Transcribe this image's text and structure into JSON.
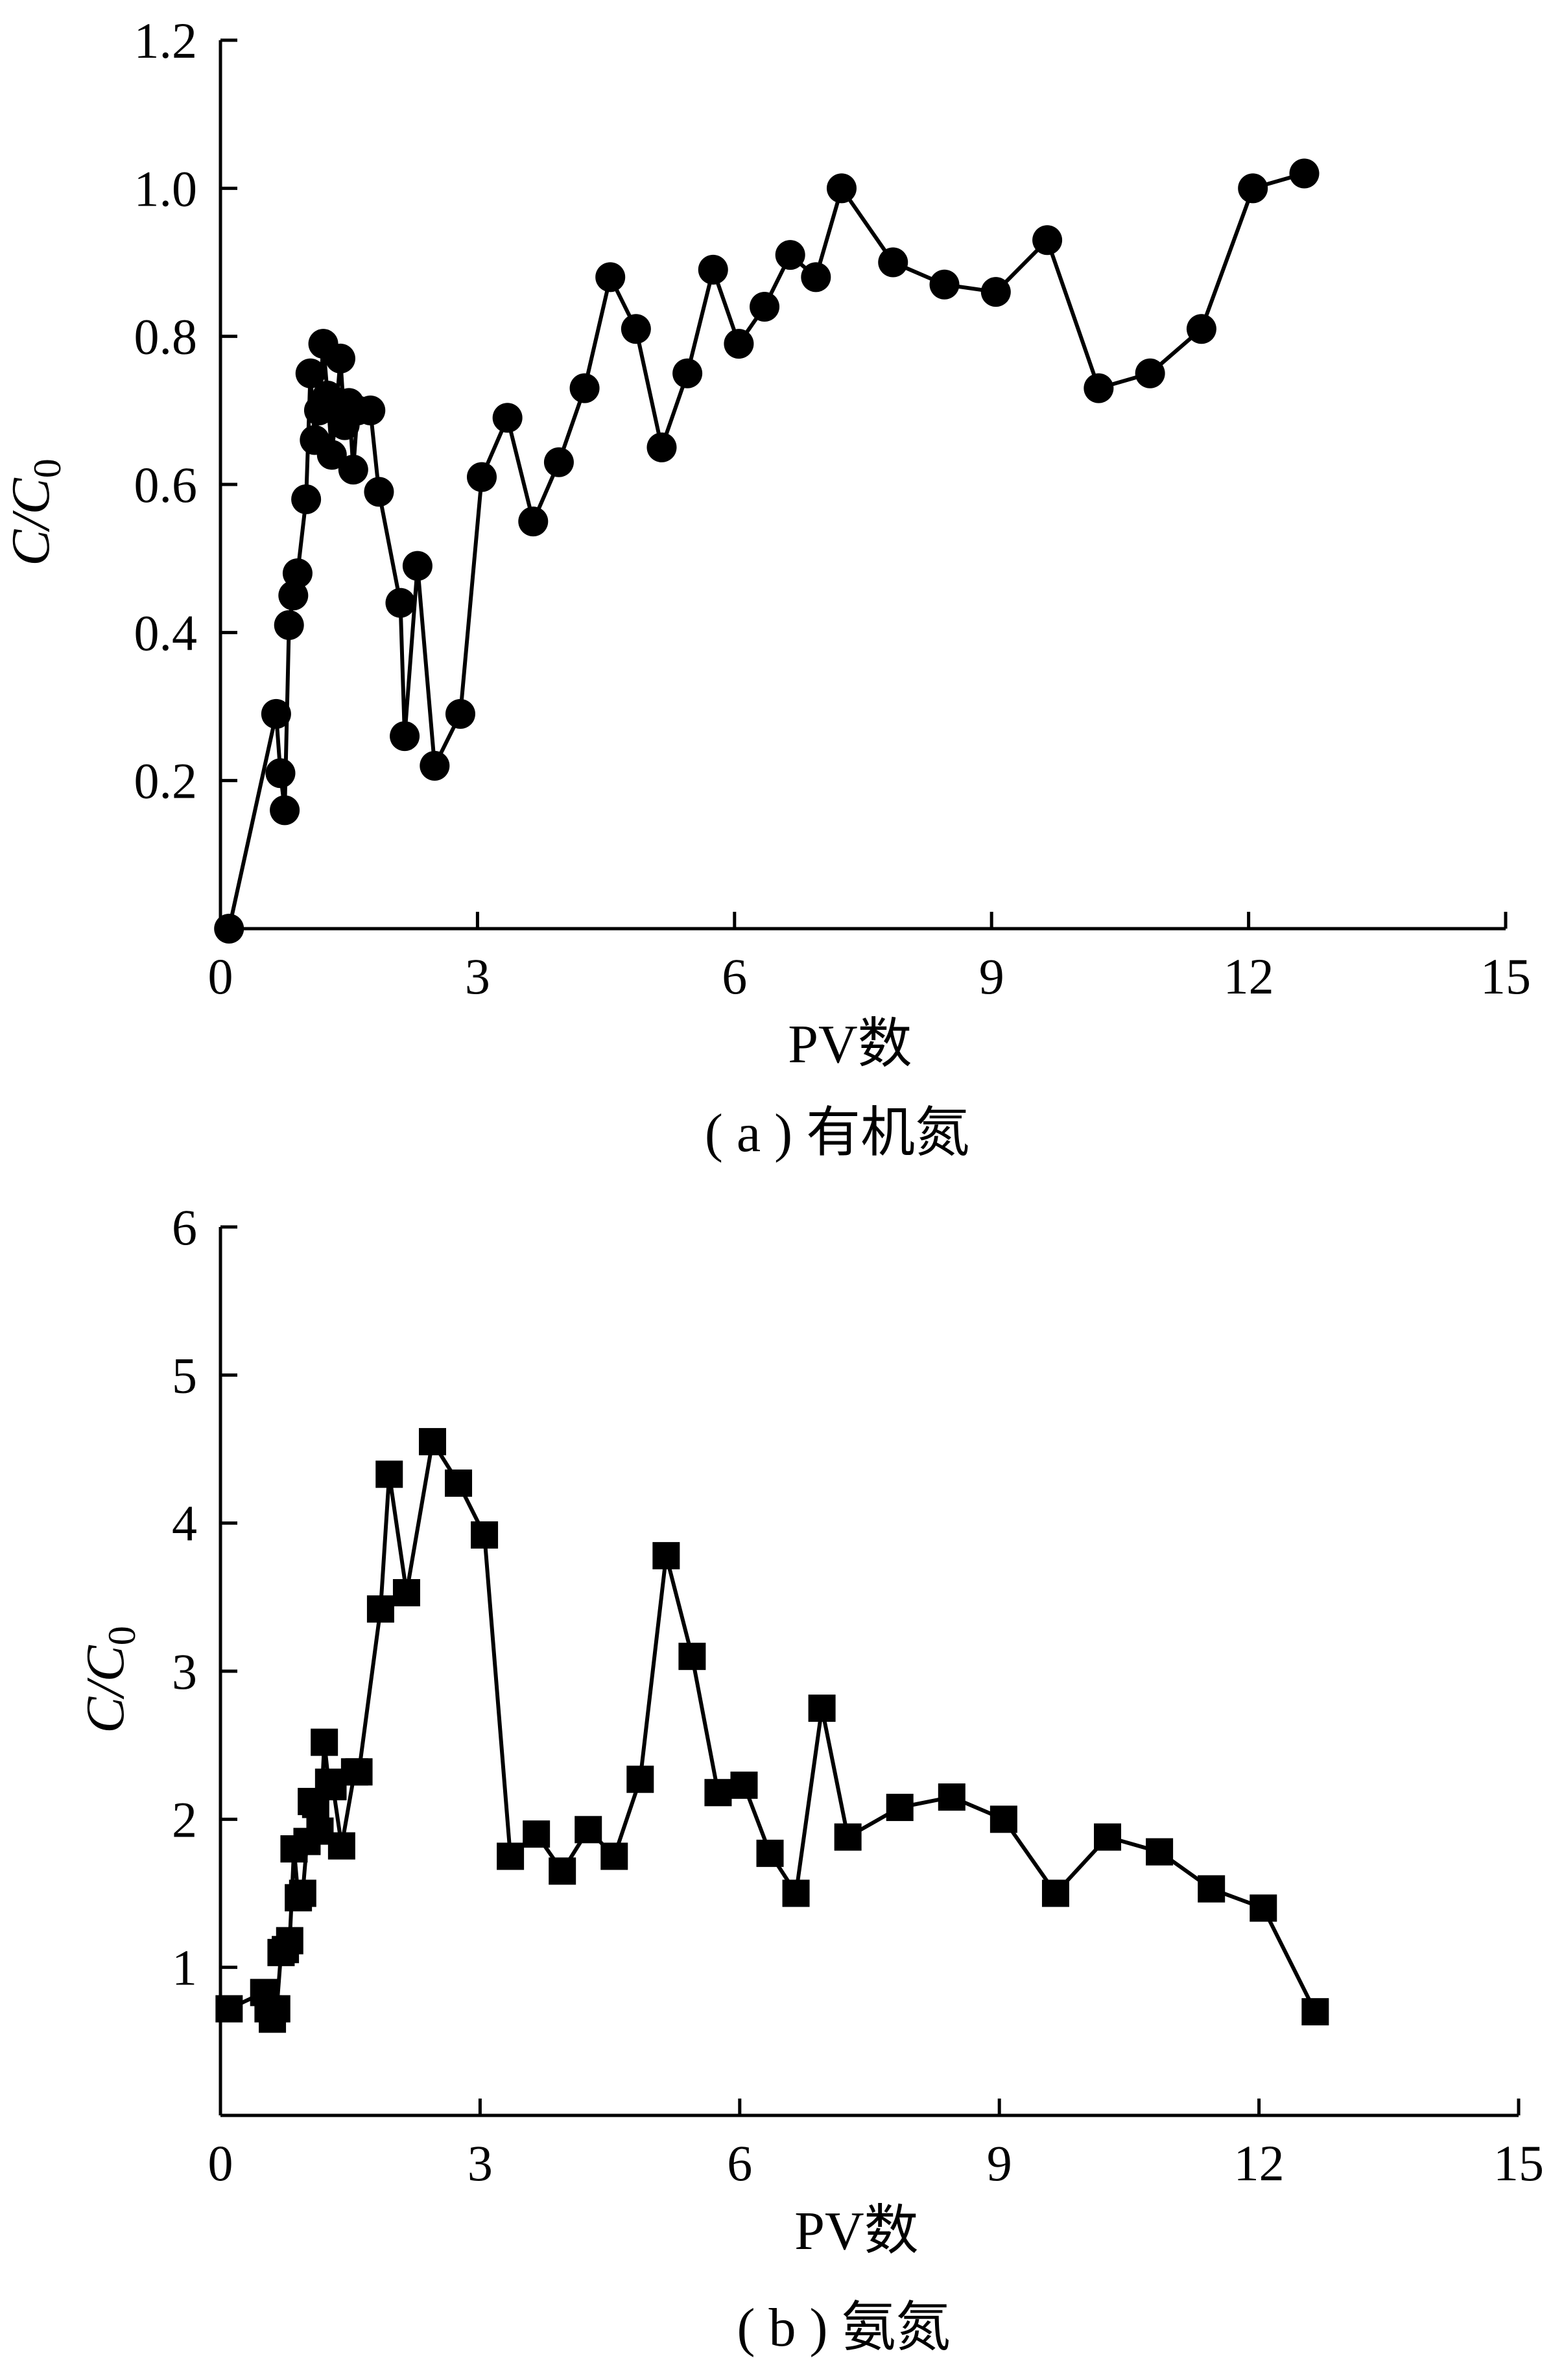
{
  "chart_data": [
    {
      "type": "line",
      "marker": "circle",
      "caption": "( a ) 有机氮",
      "xlabel": "PV数",
      "ylabel": "C/C",
      "ylabel_subscript": "0",
      "xlim": [
        0,
        15
      ],
      "ylim": [
        0,
        1.2
      ],
      "xticks": [
        "0",
        "3",
        "6",
        "9",
        "12",
        "15"
      ],
      "yticks": [
        "0.2",
        "0.4",
        "0.6",
        "0.8",
        "1.0",
        "1.2"
      ],
      "color": "#000000",
      "x": [
        0.1,
        0.65,
        0.7,
        0.75,
        0.8,
        0.85,
        0.9,
        1.0,
        1.05,
        1.1,
        1.15,
        1.2,
        1.25,
        1.3,
        1.35,
        1.4,
        1.45,
        1.5,
        1.55,
        1.6,
        1.75,
        1.85,
        2.1,
        2.15,
        2.3,
        2.5,
        2.8,
        3.05,
        3.35,
        3.65,
        3.95,
        4.25,
        4.55,
        4.85,
        5.15,
        5.45,
        5.75,
        6.05,
        6.35,
        6.65,
        6.95,
        7.25,
        7.85,
        8.45,
        9.05,
        9.65,
        10.25,
        10.85,
        11.45,
        12.05,
        12.65
      ],
      "y": [
        0.0,
        0.29,
        0.21,
        0.16,
        0.41,
        0.45,
        0.48,
        0.58,
        0.75,
        0.66,
        0.7,
        0.79,
        0.72,
        0.64,
        0.7,
        0.77,
        0.68,
        0.71,
        0.62,
        0.7,
        0.7,
        0.59,
        0.44,
        0.26,
        0.49,
        0.22,
        0.29,
        0.61,
        0.69,
        0.55,
        0.63,
        0.73,
        0.88,
        0.81,
        0.65,
        0.75,
        0.89,
        0.79,
        0.84,
        0.91,
        0.88,
        1.0,
        0.9,
        0.87,
        0.86,
        0.93,
        0.73,
        0.75,
        0.81,
        1.0,
        1.02
      ]
    },
    {
      "type": "line",
      "marker": "square",
      "caption": "( b ) 氨氮",
      "xlabel": "PV数",
      "ylabel": "C/C",
      "ylabel_subscript": "0",
      "xlim": [
        0,
        15
      ],
      "ylim": [
        0,
        6
      ],
      "xticks": [
        "0",
        "3",
        "6",
        "9",
        "12",
        "15"
      ],
      "yticks": [
        "1",
        "2",
        "3",
        "4",
        "5",
        "6"
      ],
      "color": "#000000",
      "x": [
        0.1,
        0.5,
        0.55,
        0.6,
        0.65,
        0.7,
        0.75,
        0.8,
        0.85,
        0.9,
        0.95,
        1.0,
        1.05,
        1.1,
        1.15,
        1.2,
        1.25,
        1.3,
        1.4,
        1.55,
        1.6,
        1.85,
        1.95,
        2.15,
        2.45,
        2.75,
        3.05,
        3.35,
        3.65,
        3.95,
        4.25,
        4.55,
        4.85,
        5.15,
        5.45,
        5.75,
        6.05,
        6.35,
        6.65,
        6.95,
        7.25,
        7.85,
        8.45,
        9.05,
        9.65,
        10.25,
        10.85,
        11.45,
        12.05,
        12.65
      ],
      "y": [
        0.72,
        0.83,
        0.72,
        0.65,
        0.72,
        1.1,
        1.12,
        1.18,
        1.8,
        1.47,
        1.5,
        1.85,
        2.12,
        2.1,
        1.92,
        2.52,
        2.25,
        2.22,
        1.82,
        2.32,
        2.32,
        3.42,
        4.33,
        3.53,
        4.55,
        4.27,
        3.92,
        1.75,
        1.9,
        1.65,
        1.93,
        1.75,
        2.27,
        3.78,
        3.1,
        2.18,
        2.23,
        1.77,
        1.5,
        2.75,
        1.88,
        2.08,
        2.15,
        2.0,
        1.5,
        1.88,
        1.78,
        1.53,
        1.4,
        0.7
      ]
    }
  ]
}
